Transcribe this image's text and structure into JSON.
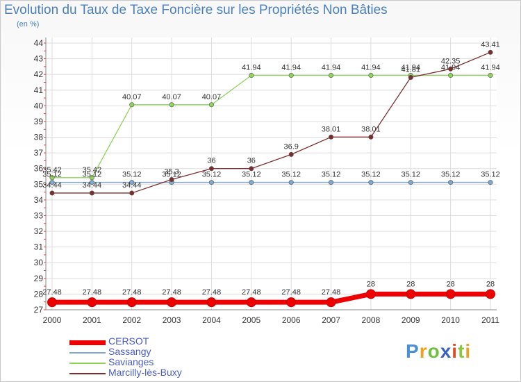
{
  "title": "Evolution du Taux de Taxe Foncière sur les Propriétés Non Bâties",
  "unit_label": "(en %)",
  "logo": {
    "text": "Proxiti",
    "letters": [
      "P",
      "r",
      "o",
      "x",
      "i",
      "t",
      "i"
    ],
    "colors": [
      "#4a8fd6",
      "#f0a020",
      "#6fbf3f",
      "#3a63c0",
      "#e04a2a",
      "#8cc63f",
      "#f0a020"
    ]
  },
  "chart_data": {
    "type": "line",
    "x": [
      "2000",
      "2001",
      "2002",
      "2003",
      "2004",
      "2005",
      "2006",
      "2007",
      "2008",
      "2009",
      "2010",
      "2011"
    ],
    "ylim": [
      27,
      44
    ],
    "yticks": [
      "27",
      "28",
      "29",
      "30",
      "31",
      "32",
      "33",
      "34",
      "35",
      "36",
      "37",
      "38",
      "39",
      "40",
      "41",
      "42",
      "43",
      "44"
    ],
    "grid": true,
    "legend_position": "bottom-left",
    "series": [
      {
        "name": "Savianges",
        "color": "#8fd35a",
        "values": [
          35.42,
          35.42,
          40.07,
          40.07,
          40.07,
          41.94,
          41.94,
          41.94,
          41.94,
          41.94,
          41.94,
          41.94
        ],
        "labels": [
          "35.42",
          "35.42",
          "40.07",
          "40.07",
          "40.07",
          "41.94",
          "41.94",
          "41.94",
          "41.94",
          "41.94",
          "41.94",
          "41.94"
        ]
      },
      {
        "name": "Sassangy",
        "color": "#7fa8d0",
        "values": [
          35.12,
          35.12,
          35.12,
          35.12,
          35.12,
          35.12,
          35.12,
          35.12,
          35.12,
          35.12,
          35.12,
          35.12
        ],
        "labels": [
          "35.12",
          "35.12",
          "35.12",
          "35.12",
          "35.12",
          "35.12",
          "35.12",
          "35.12",
          "35.12",
          "35.12",
          "35.12",
          "35.12"
        ]
      },
      {
        "name": "Marcilly-lès-Buxy",
        "color": "#7a2e2e",
        "values": [
          34.44,
          34.44,
          34.44,
          35.3,
          36,
          36,
          36.9,
          38.01,
          38.01,
          41.81,
          42.35,
          43.41
        ],
        "labels": [
          "34.44",
          "34.44",
          "34.44",
          "35.3",
          "36",
          "36",
          "36.9",
          "38.01",
          "38.01",
          "41.81",
          "42.35",
          "43.41"
        ]
      },
      {
        "name": "CERSOT",
        "color": "#ee0000",
        "values": [
          27.48,
          27.48,
          27.48,
          27.48,
          27.48,
          27.48,
          27.48,
          27.48,
          28,
          28,
          28,
          28
        ],
        "labels": [
          "27.48",
          "27.48",
          "27.48",
          "27.48",
          "27.48",
          "27.48",
          "27.48",
          "27.48",
          "28",
          "28",
          "28",
          "28"
        ]
      }
    ],
    "legend": [
      {
        "name": "CERSOT",
        "color": "#ee0000"
      },
      {
        "name": "Sassangy",
        "color": "#7fa8d0"
      },
      {
        "name": "Savianges",
        "color": "#8fd35a"
      },
      {
        "name": "Marcilly-lès-Buxy",
        "color": "#7a2e2e"
      }
    ]
  }
}
